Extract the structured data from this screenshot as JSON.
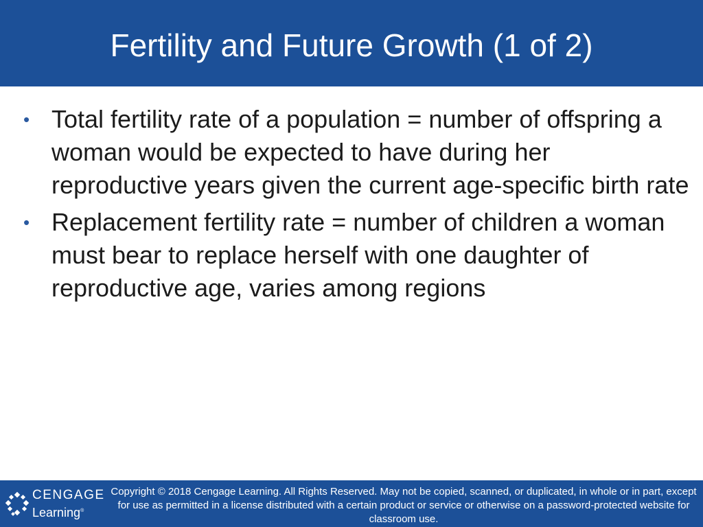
{
  "slide": {
    "title": "Fertility and Future Growth (1 of 2)",
    "bullets": [
      {
        "marker": "•",
        "text": "Total fertility rate of a population = number of offspring a woman would be expected to have during her reproductive years given the current age-specific birth rate"
      },
      {
        "marker": "•",
        "text": "Replacement fertility rate = number of children a woman must bear to replace herself with one daughter of reproductive age, varies among regions"
      }
    ]
  },
  "footer": {
    "logo": {
      "word": "CENGAGE",
      "sub": "Learning",
      "reg": "®",
      "icon": "cengage-logo-icon"
    },
    "copyright": "Copyright © 2018 Cengage Learning. All Rights Reserved. May not be copied, scanned, or duplicated, in whole or in part, except for use as permitted in a license distributed with a certain product or service or otherwise on a password-protected website for classroom use."
  },
  "colors": {
    "brand_blue": "#1c5098",
    "bullet_blue": "#2a5aa0",
    "body_text": "#1b1b1b",
    "background": "#ffffff"
  }
}
